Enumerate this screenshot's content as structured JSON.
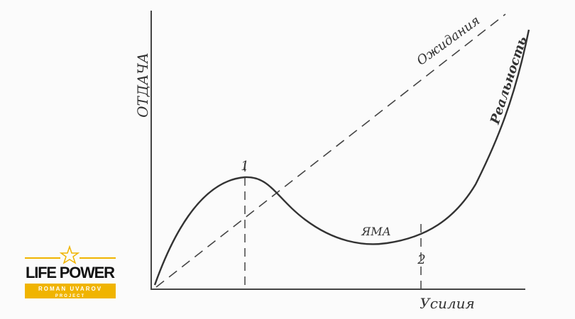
{
  "axes": {
    "y_label": "ОТДАЧА",
    "x_label": "Усилия"
  },
  "curves": {
    "expectation": "Ожидания",
    "reality": "Реальность"
  },
  "annotations": {
    "pit": "ЯМА",
    "point_1": "1",
    "point_2": "2"
  },
  "logo": {
    "title": "LIFE POWER",
    "subtitle": "ROMAN UVAROV",
    "tagline": "PROJECT"
  }
}
